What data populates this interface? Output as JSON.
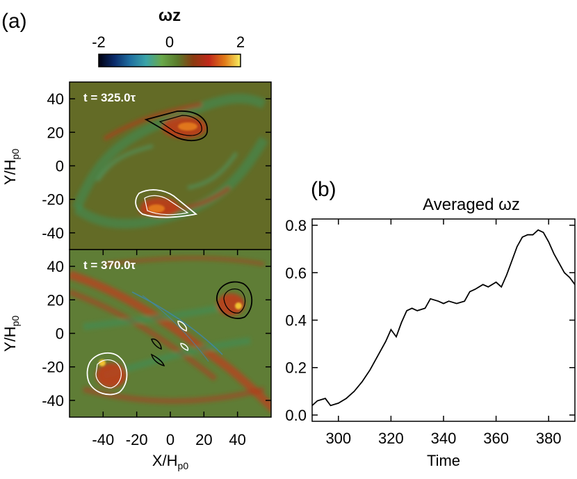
{
  "chart_data": [
    {
      "type": "heatmap",
      "panel_label": "(a)",
      "colorbar": {
        "title": "ωz",
        "min": -2,
        "max": 2,
        "ticks": [
          "-2",
          "0",
          "2"
        ],
        "colors": [
          "#000010",
          "#0a2a6a",
          "#1f6fa0",
          "#3aa3a8",
          "#68a84a",
          "#5a7a2a",
          "#8a3a10",
          "#c0281a",
          "#e07a18",
          "#f8f060"
        ]
      },
      "subplots": [
        {
          "time_label": "t = 325.0τ",
          "ylabel": "Y/H",
          "ylabel_sub": "p0",
          "ylim": [
            -50,
            50
          ],
          "yticks": [
            "40",
            "20",
            "0",
            "-20",
            "-40"
          ],
          "background": "#636b26"
        },
        {
          "time_label": "t = 370.0τ",
          "ylabel": "Y/H",
          "ylabel_sub": "p0",
          "ylim": [
            -50,
            50
          ],
          "yticks": [
            "40",
            "20",
            "0",
            "-20",
            "-40"
          ],
          "background": "#5f7d36",
          "xlabel": "X/H",
          "xlabel_sub": "p0",
          "xlim": [
            -60,
            60
          ],
          "xticks": [
            "-40",
            "-20",
            "0",
            "20",
            "40"
          ]
        }
      ]
    },
    {
      "type": "line",
      "panel_label": "(b)",
      "title": "Averaged ωz",
      "xlabel": "Time",
      "xlim": [
        290,
        390
      ],
      "ylim": [
        0.0,
        0.8
      ],
      "xticks": [
        "300",
        "320",
        "340",
        "360",
        "380"
      ],
      "yticks": [
        "0.0",
        "0.2",
        "0.4",
        "0.6",
        "0.8"
      ],
      "series": [
        {
          "x": [
            290,
            292,
            295,
            297,
            300,
            303,
            306,
            309,
            312,
            315,
            318,
            320,
            322,
            324,
            326,
            328,
            330,
            333,
            335,
            338,
            340,
            342,
            345,
            348,
            350,
            352,
            355,
            357,
            360,
            362,
            364,
            366,
            368,
            370,
            372,
            374,
            376,
            378,
            380,
            382,
            384,
            386,
            388,
            390
          ],
          "y": [
            0.04,
            0.06,
            0.07,
            0.04,
            0.05,
            0.07,
            0.1,
            0.14,
            0.19,
            0.25,
            0.31,
            0.36,
            0.33,
            0.39,
            0.44,
            0.45,
            0.44,
            0.45,
            0.49,
            0.48,
            0.47,
            0.48,
            0.47,
            0.48,
            0.52,
            0.53,
            0.55,
            0.54,
            0.56,
            0.54,
            0.59,
            0.65,
            0.71,
            0.75,
            0.76,
            0.76,
            0.78,
            0.77,
            0.73,
            0.68,
            0.64,
            0.6,
            0.58,
            0.55
          ]
        }
      ]
    }
  ]
}
